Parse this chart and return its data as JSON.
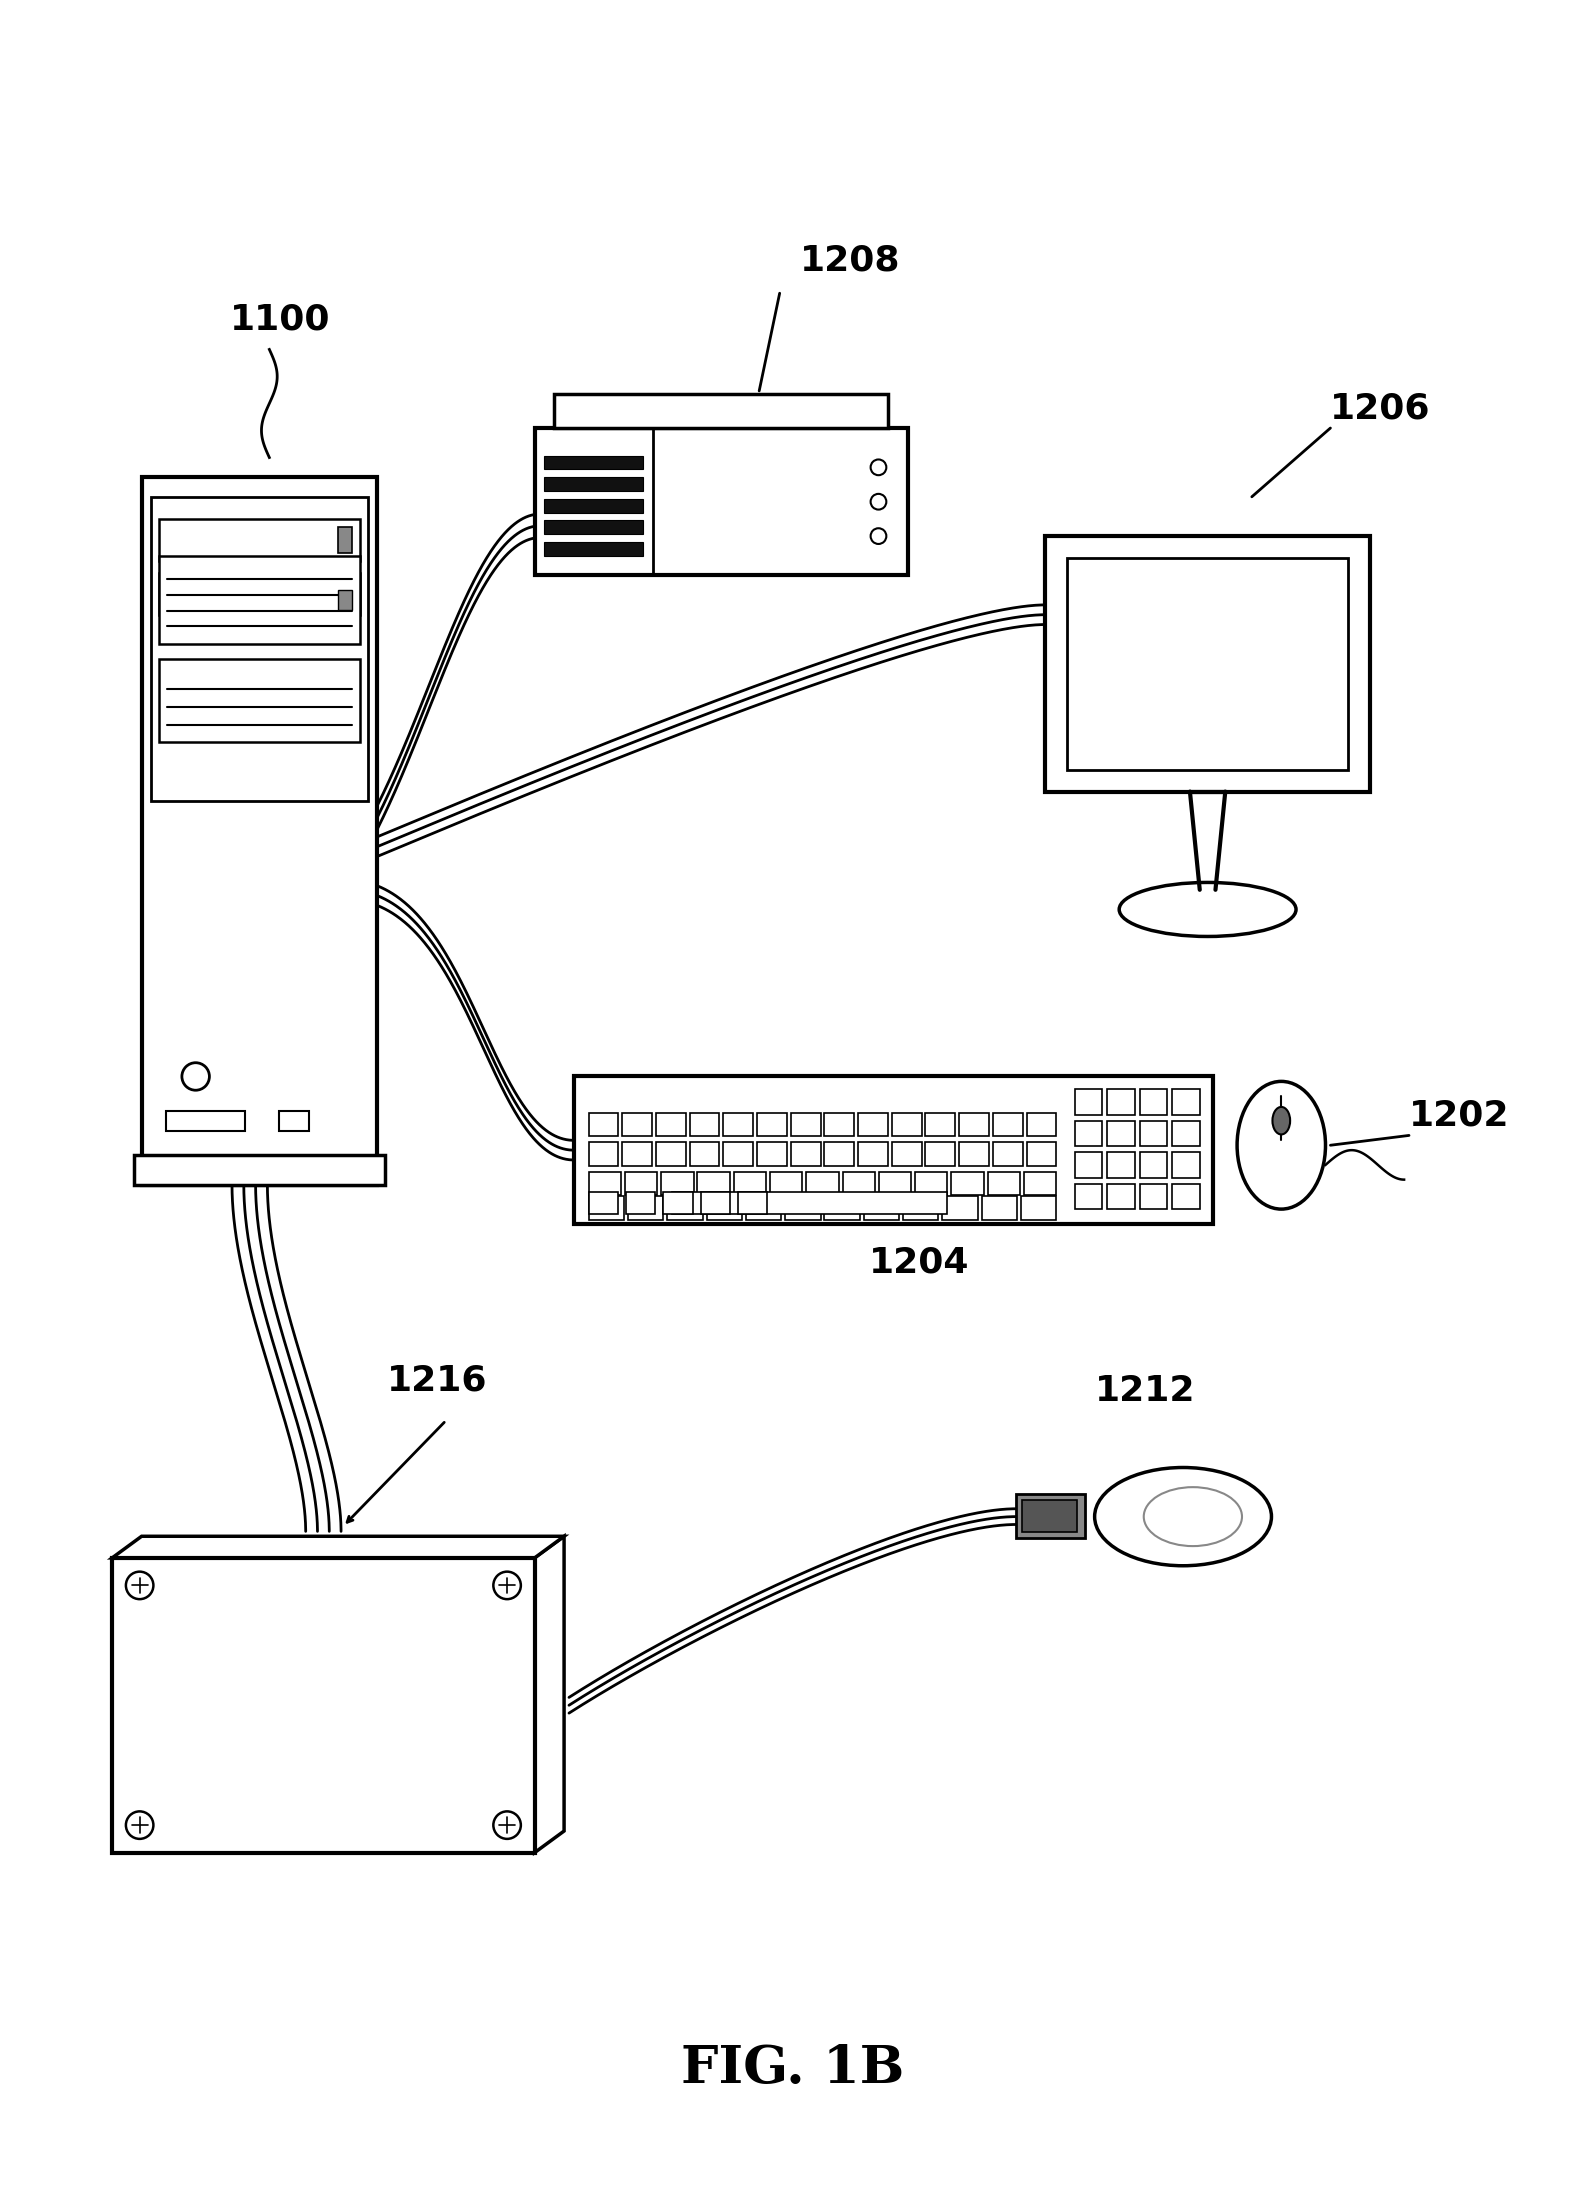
{
  "title": "FIG. 1B",
  "background_color": "#ffffff",
  "figsize": [
    15.86,
    22.06
  ],
  "dpi": 100,
  "lw_main": 2.5,
  "lw_cable": 2.0,
  "label_fontsize": 26,
  "title_fontsize": 38
}
